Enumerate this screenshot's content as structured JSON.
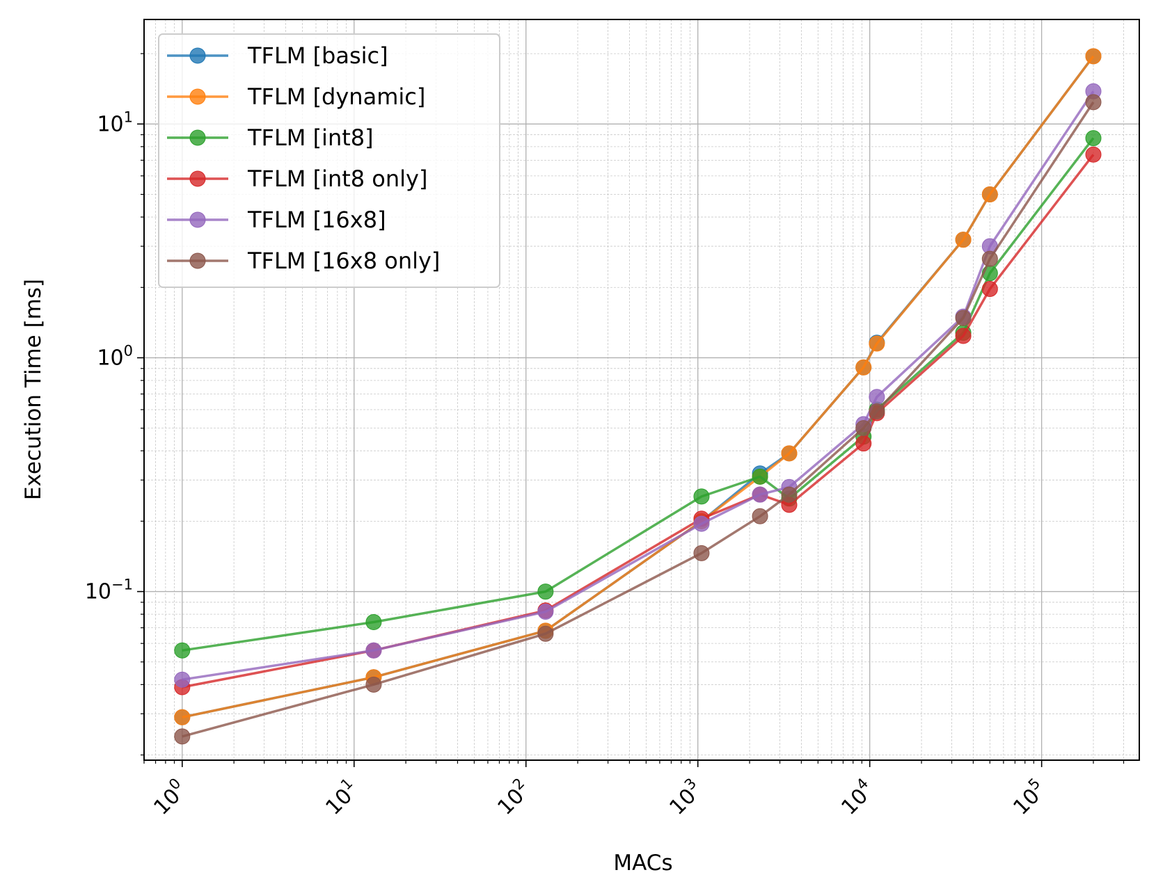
{
  "chart_data": {
    "type": "line",
    "title": "",
    "xlabel": "MACs",
    "ylabel": "Execution Time [ms]",
    "xscale": "log",
    "yscale": "log",
    "xlim": [
      0.6,
      370000
    ],
    "ylim": [
      0.019,
      28
    ],
    "grid": "major and minor",
    "legend_position": "top-left",
    "x_ticks": [
      {
        "base": "10",
        "exp": "0"
      },
      {
        "base": "10",
        "exp": "1"
      },
      {
        "base": "10",
        "exp": "2"
      },
      {
        "base": "10",
        "exp": "3"
      },
      {
        "base": "10",
        "exp": "4"
      },
      {
        "base": "10",
        "exp": "5"
      }
    ],
    "y_ticks": [
      {
        "base": "10",
        "exp": "−1"
      },
      {
        "base": "10",
        "exp": "0"
      },
      {
        "base": "10",
        "exp": "1"
      }
    ],
    "y_tick_labels_plain": [
      "",
      "10^0",
      "10^1"
    ],
    "y_tick_values": [
      0.1,
      1,
      10
    ],
    "x_tick_values": [
      1,
      10,
      100,
      1000,
      10000,
      100000
    ],
    "series": [
      {
        "name": "TFLM [basic]",
        "color": "#1f77b4",
        "points": [
          [
            1,
            0.029
          ],
          [
            13,
            0.043
          ],
          [
            130,
            0.068
          ],
          [
            1050,
            0.2
          ],
          [
            2300,
            0.32
          ],
          [
            3400,
            0.39
          ],
          [
            9200,
            0.91
          ],
          [
            11000,
            1.16
          ],
          [
            35000,
            3.2
          ],
          [
            50000,
            5.0
          ],
          [
            200000,
            19.5
          ]
        ]
      },
      {
        "name": "TFLM [dynamic]",
        "color": "#ff7f0e",
        "points": [
          [
            1,
            0.029
          ],
          [
            13,
            0.043
          ],
          [
            130,
            0.068
          ],
          [
            1050,
            0.2
          ],
          [
            2300,
            0.31
          ],
          [
            3400,
            0.39
          ],
          [
            9200,
            0.91
          ],
          [
            11000,
            1.15
          ],
          [
            35000,
            3.2
          ],
          [
            50000,
            5.0
          ],
          [
            200000,
            19.5
          ]
        ]
      },
      {
        "name": "TFLM [int8]",
        "color": "#2ca02c",
        "points": [
          [
            1,
            0.056
          ],
          [
            13,
            0.074
          ],
          [
            130,
            0.1
          ],
          [
            1050,
            0.255
          ],
          [
            2300,
            0.31
          ],
          [
            3400,
            0.25
          ],
          [
            9200,
            0.46
          ],
          [
            11000,
            0.6
          ],
          [
            35000,
            1.28
          ],
          [
            50000,
            2.3
          ],
          [
            200000,
            8.7
          ]
        ]
      },
      {
        "name": "TFLM [int8 only]",
        "color": "#d62728",
        "points": [
          [
            1,
            0.039
          ],
          [
            13,
            0.056
          ],
          [
            130,
            0.083
          ],
          [
            1050,
            0.205
          ],
          [
            2300,
            0.26
          ],
          [
            3400,
            0.235
          ],
          [
            9200,
            0.43
          ],
          [
            11000,
            0.58
          ],
          [
            35000,
            1.24
          ],
          [
            50000,
            1.97
          ],
          [
            200000,
            7.4
          ]
        ]
      },
      {
        "name": "TFLM [16x8]",
        "color": "#9467bd",
        "points": [
          [
            1,
            0.042
          ],
          [
            13,
            0.056
          ],
          [
            130,
            0.082
          ],
          [
            1050,
            0.195
          ],
          [
            2300,
            0.26
          ],
          [
            3400,
            0.28
          ],
          [
            9200,
            0.52
          ],
          [
            11000,
            0.68
          ],
          [
            35000,
            1.5
          ],
          [
            50000,
            3.0
          ],
          [
            200000,
            13.8
          ]
        ]
      },
      {
        "name": "TFLM [16x8 only]",
        "color": "#8c564b",
        "points": [
          [
            1,
            0.024
          ],
          [
            13,
            0.04
          ],
          [
            130,
            0.066
          ],
          [
            1050,
            0.146
          ],
          [
            2300,
            0.21
          ],
          [
            3400,
            0.26
          ],
          [
            9200,
            0.5
          ],
          [
            11000,
            0.59
          ],
          [
            35000,
            1.48
          ],
          [
            50000,
            2.65
          ],
          [
            200000,
            12.4
          ]
        ]
      }
    ]
  }
}
